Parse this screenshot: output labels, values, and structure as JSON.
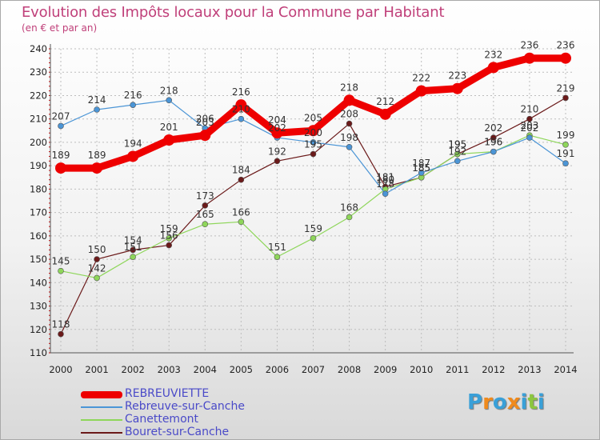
{
  "title": "Evolution des Impôts locaux pour la Commune par Habitant",
  "subtitle": "(en € et par an)",
  "logo_text": "Proxiti",
  "colors": {
    "title": "#c0407a",
    "grid": "#bdbdbd",
    "legend_text": "#4a4ac8",
    "logo": [
      "#3aa0d8",
      "#f08a1c",
      "#3aa0d8",
      "#f08a1c",
      "#3aa0d8",
      "#8cc63f",
      "#3aa0d8"
    ]
  },
  "chart_data": {
    "type": "line",
    "x": [
      "2000",
      "2001",
      "2002",
      "2003",
      "2004",
      "2005",
      "2006",
      "2007",
      "2008",
      "2009",
      "2010",
      "2011",
      "2012",
      "2013",
      "2014"
    ],
    "ylim": [
      110,
      240
    ],
    "yticks": [
      110,
      120,
      130,
      140,
      150,
      160,
      170,
      180,
      190,
      200,
      210,
      220,
      230,
      240
    ],
    "grid": true,
    "legend_position": "bottom-left",
    "series": [
      {
        "name": "REBREUVIETTE",
        "color": "#ee0000",
        "values": [
          189,
          189,
          194,
          201,
          203,
          216,
          204,
          205,
          218,
          212,
          222,
          223,
          232,
          236,
          236
        ],
        "labels": [
          "189",
          "189",
          "194",
          "201",
          "203",
          "216",
          "204",
          "205",
          "218",
          "212",
          "222",
          "223",
          "232",
          "236",
          "236"
        ]
      },
      {
        "name": "Rebreuve-sur-Canche",
        "color": "#4b95d6",
        "values": [
          207,
          214,
          216,
          218,
          206,
          210,
          202,
          200,
          198,
          178,
          187,
          192,
          196,
          202,
          191
        ],
        "labels": [
          "207",
          "214",
          "216",
          "218",
          "206",
          "210",
          "202",
          "200",
          "198",
          "178",
          "187",
          "192",
          "196",
          "202",
          "191"
        ]
      },
      {
        "name": "Canettemont",
        "color": "#8ed65a",
        "values": [
          145,
          142,
          151,
          159,
          165,
          166,
          151,
          159,
          168,
          180,
          185,
          195,
          196,
          203,
          199
        ],
        "labels": [
          "145",
          "142",
          "151",
          "159",
          "165",
          "166",
          "151",
          "159",
          "168",
          "180",
          "185",
          "195",
          "196",
          "203",
          "199"
        ]
      },
      {
        "name": "Bouret-sur-Canche",
        "color": "#6b1a1a",
        "values": [
          118,
          150,
          154,
          156,
          173,
          184,
          192,
          195,
          208,
          181,
          185,
          195,
          202,
          210,
          219
        ],
        "labels": [
          "118",
          "150",
          "154",
          "156",
          "173",
          "184",
          "192",
          "195",
          "208",
          "181",
          "185",
          "195",
          "202",
          "210",
          "219"
        ]
      }
    ]
  }
}
